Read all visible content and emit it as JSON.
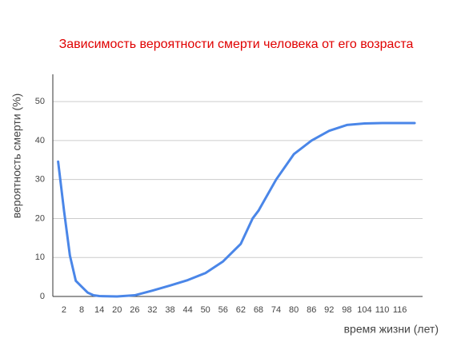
{
  "chart_data": {
    "type": "line",
    "title": "Зависимость вероятности смерти человека от его возраста",
    "x_label": "время жизни (лет)",
    "y_label": "вероятность смерти (%)",
    "x": [
      0,
      2,
      4,
      6,
      8,
      10,
      12,
      14,
      20,
      26,
      32,
      38,
      44,
      50,
      56,
      60,
      62,
      66,
      68,
      74,
      80,
      86,
      92,
      98,
      104,
      110,
      116,
      121
    ],
    "series": [
      {
        "name": "вероятность смерти",
        "color": "#4a86e8",
        "values": [
          34.6,
          22,
          10.5,
          4,
          2.5,
          1,
          0.3,
          0.1,
          0,
          0.3,
          1.5,
          2.8,
          4.2,
          6,
          9,
          12,
          13.5,
          20,
          22,
          30,
          36.5,
          40,
          42.5,
          44,
          44.4,
          44.5,
          44.5,
          44.5
        ]
      }
    ],
    "xlim": [
      -1.8,
      123.7
    ],
    "xticks": [
      2,
      8,
      14,
      20,
      26,
      32,
      38,
      44,
      50,
      56,
      62,
      68,
      74,
      80,
      86,
      92,
      98,
      104,
      110,
      116
    ],
    "ylim": [
      0,
      57
    ],
    "yticks": [
      0,
      10,
      20,
      30,
      40,
      50
    ],
    "grid": true
  }
}
